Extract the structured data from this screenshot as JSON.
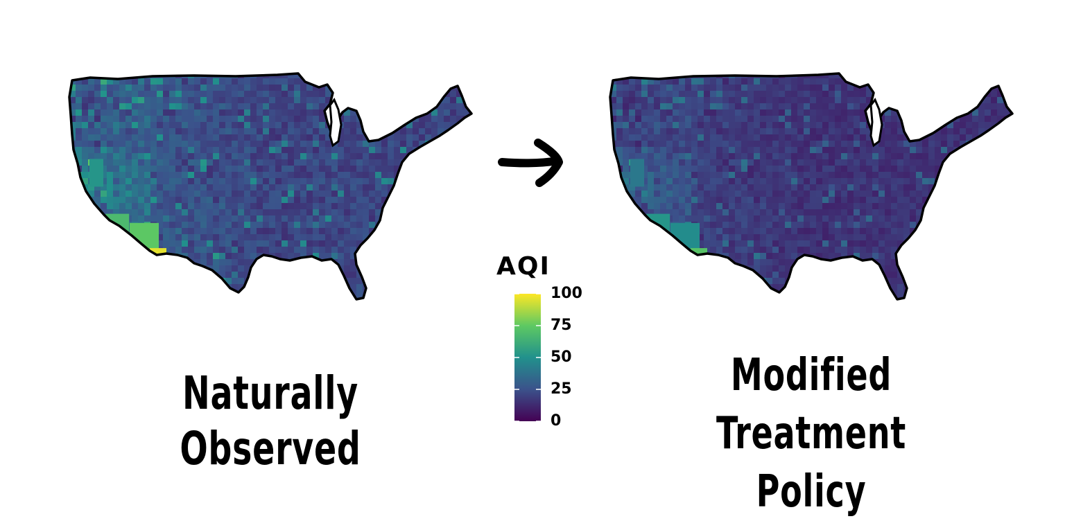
{
  "maps": [
    {
      "id": "observed",
      "caption": "Naturally Observed",
      "hotspot_high": true
    },
    {
      "id": "modified",
      "caption_lines": [
        "Modified Treatment",
        "Policy"
      ],
      "hotspot_high": false
    }
  ],
  "arrow": {
    "icon": "right-arrow-icon"
  },
  "legend": {
    "title": "AQI",
    "ticks": [
      {
        "value": 100,
        "label": "100"
      },
      {
        "value": 75,
        "label": "75"
      },
      {
        "value": 50,
        "label": "50"
      },
      {
        "value": 25,
        "label": "25"
      },
      {
        "value": 0,
        "label": "0"
      }
    ],
    "colors": [
      "#440154",
      "#3b528b",
      "#21918c",
      "#5ec962",
      "#fde725"
    ],
    "range": [
      0,
      100
    ]
  }
}
